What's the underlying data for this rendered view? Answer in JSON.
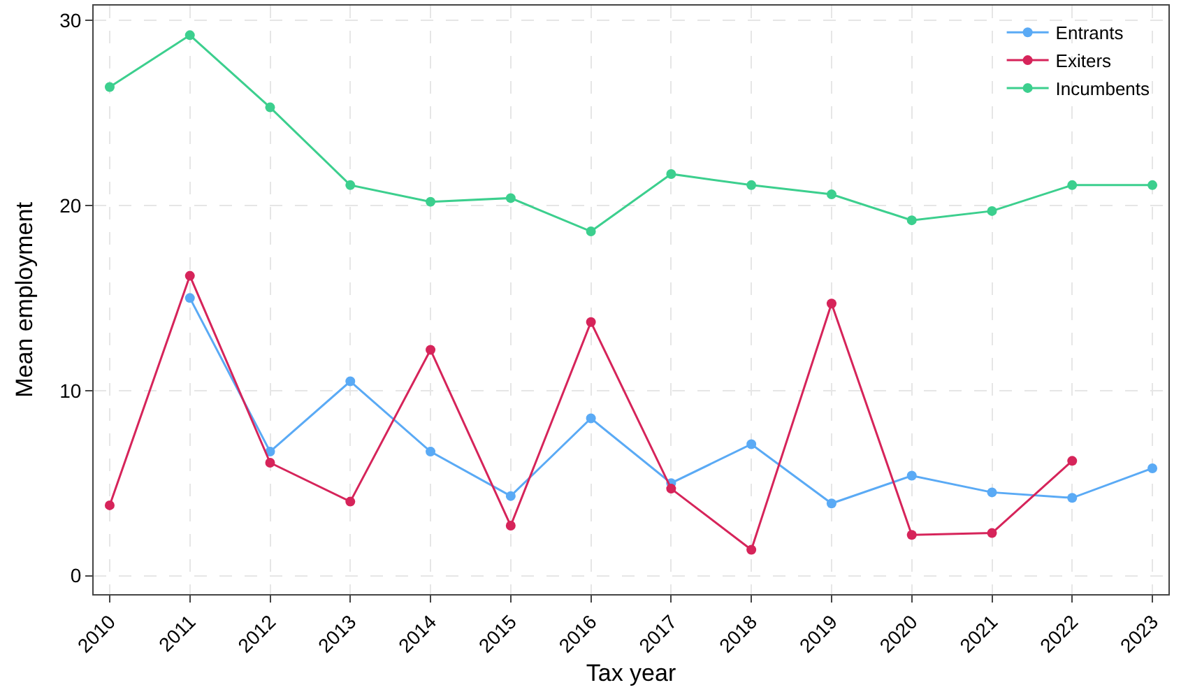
{
  "chart_data": {
    "type": "line",
    "xlabel": "Tax year",
    "ylabel": "Mean employment",
    "x": [
      2010,
      2011,
      2012,
      2013,
      2014,
      2015,
      2016,
      2017,
      2018,
      2019,
      2020,
      2021,
      2022,
      2023
    ],
    "xlim": [
      2009.8,
      2023.2
    ],
    "xticks": [
      2010,
      2011,
      2012,
      2013,
      2014,
      2015,
      2016,
      2017,
      2018,
      2019,
      2020,
      2021,
      2022,
      2023
    ],
    "ylim": [
      -1,
      30.8
    ],
    "yticks": [
      0,
      10,
      20,
      30
    ],
    "grid": true,
    "legend": "top right",
    "marker": "circle",
    "line_style": "solid",
    "series": [
      {
        "name": "Entrants",
        "color": "#5aaaf5",
        "values": [
          null,
          15.0,
          6.7,
          10.5,
          6.7,
          4.3,
          8.5,
          5.0,
          7.1,
          3.9,
          5.4,
          4.5,
          4.2,
          5.8
        ]
      },
      {
        "name": "Exiters",
        "color": "#d6245a",
        "values": [
          3.8,
          16.2,
          6.1,
          4.0,
          12.2,
          2.7,
          13.7,
          4.7,
          1.4,
          14.7,
          2.2,
          2.3,
          6.2,
          null
        ]
      },
      {
        "name": "Incumbents",
        "color": "#3ccf8e",
        "values": [
          26.4,
          29.2,
          25.3,
          21.1,
          20.2,
          20.4,
          18.6,
          21.7,
          21.1,
          20.6,
          19.2,
          19.7,
          21.1,
          21.1
        ]
      }
    ]
  }
}
